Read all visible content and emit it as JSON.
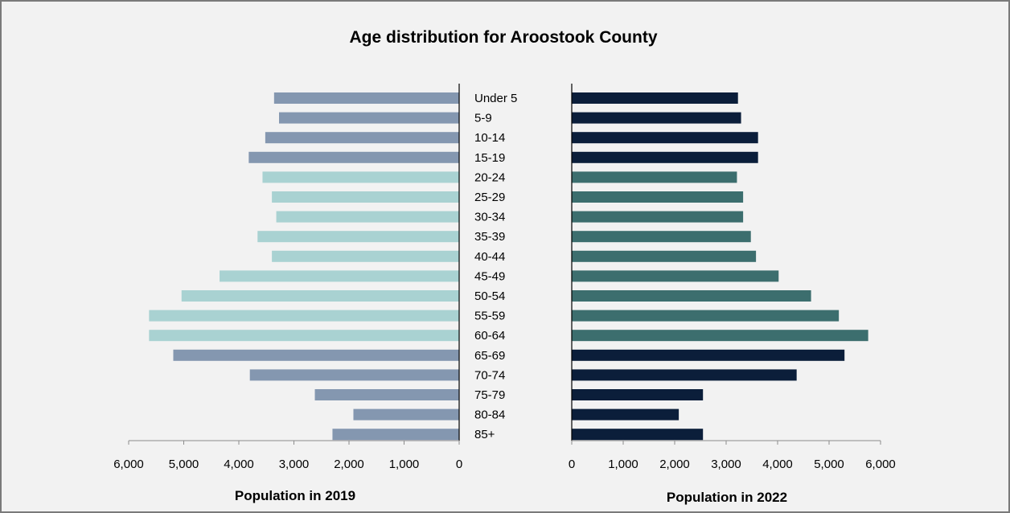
{
  "chart_data": {
    "type": "bar",
    "title": "Age distribution for Aroostook County",
    "categories": [
      "Under 5",
      "5-9",
      "10-14",
      "15-19",
      "20-24",
      "25-29",
      "30-34",
      "35-39",
      "40-44",
      "45-49",
      "50-54",
      "55-59",
      "60-64",
      "65-69",
      "70-74",
      "75-79",
      "80-84",
      "85+"
    ],
    "colors": {
      "left_outer": "#8497b0",
      "left_working_age": "#a9d2d2",
      "right_outer": "#0b1e3a",
      "right_working_age": "#3c6e6e"
    },
    "working_age_categories": [
      "20-24",
      "25-29",
      "30-34",
      "35-39",
      "40-44",
      "45-49",
      "50-54",
      "55-59",
      "60-64"
    ],
    "panels": [
      {
        "name": "Population in 2019",
        "xlabel": "Population in 2019",
        "direction": "reversed",
        "xlim": [
          0,
          6000
        ],
        "ticks": [
          "0",
          "1,000",
          "2,000",
          "3,000",
          "4,000",
          "5,000",
          "6,000"
        ],
        "values": [
          3360,
          3270,
          3520,
          3820,
          3570,
          3400,
          3320,
          3660,
          3400,
          4350,
          5040,
          5630,
          5630,
          5190,
          3800,
          2620,
          1920,
          2300
        ]
      },
      {
        "name": "Population in 2022",
        "xlabel": "Population in 2022",
        "direction": "normal",
        "xlim": [
          0,
          6000
        ],
        "ticks": [
          "0",
          "1,000",
          "2,000",
          "3,000",
          "4,000",
          "5,000",
          "6,000"
        ],
        "values": [
          3230,
          3290,
          3620,
          3620,
          3210,
          3330,
          3330,
          3480,
          3580,
          4020,
          4650,
          5190,
          5760,
          5300,
          4370,
          2550,
          2080,
          2550
        ]
      }
    ]
  }
}
